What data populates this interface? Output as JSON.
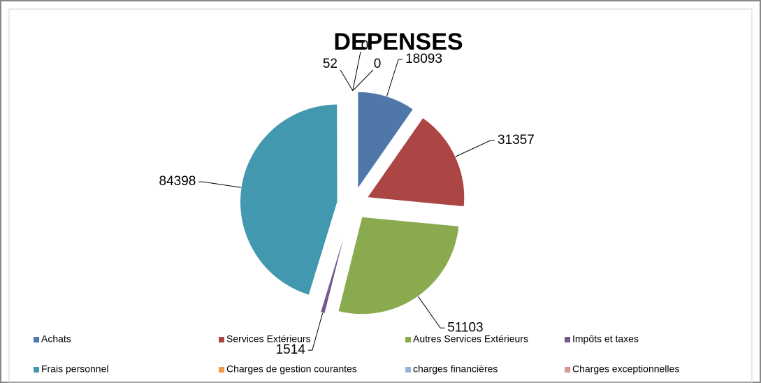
{
  "chart_data": {
    "type": "pie",
    "title": "DEPENSES",
    "categories": [
      "Achats",
      "Services Extérieurs",
      "Autres Services Extérieurs",
      "Impôts et taxes",
      "Frais personnel",
      "Charges de gestion courantes",
      "charges financières",
      "Charges exceptionnelles"
    ],
    "values": [
      18093,
      31357,
      51103,
      1514,
      84398,
      0,
      0,
      52
    ],
    "colors": [
      "#4F77AA",
      "#AC4644",
      "#8AAA4F",
      "#72598F",
      "#4299AF",
      "#F79646",
      "#95B3D7",
      "#D99694"
    ],
    "legend": "bottom"
  }
}
